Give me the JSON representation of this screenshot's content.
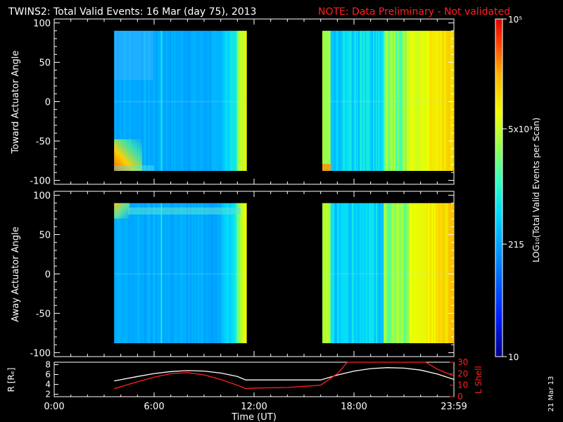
{
  "header": {
    "title": "TWINS2: Total Valid Events: 16 Mar (day  75), 2013",
    "note": "NOTE: Data Preliminary - Not validated"
  },
  "footer": {
    "date_stamp": "21 Mar 13"
  },
  "colors": {
    "axis": "#ffffff",
    "note": "#ff2020",
    "background": "#000000"
  },
  "chart_data": [
    {
      "type": "heatmap",
      "ylabel": "Toward Actuator Angle",
      "ylim": [
        -105,
        105
      ],
      "yticks": [
        "100",
        "50",
        "0",
        "-50",
        "-100"
      ],
      "xlim": [
        0,
        24
      ],
      "data_intervals_ut": [
        [
          3.6,
          11.55
        ],
        [
          16.1,
          24.0
        ]
      ],
      "data_angle_range": [
        -88,
        90
      ],
      "dominant_level": "~215-500 events per scan (blue), rising to ~5e3-1e5 (yellow/orange) near 11:00 and after 21:00"
    },
    {
      "type": "heatmap",
      "ylabel": "Away Actuator Angle",
      "ylim": [
        -105,
        105
      ],
      "yticks": [
        "100",
        "50",
        "0",
        "-50",
        "-100"
      ],
      "xlim": [
        0,
        24
      ],
      "data_intervals_ut": [
        [
          3.6,
          11.55
        ],
        [
          16.1,
          24.0
        ]
      ],
      "data_angle_range": [
        -88,
        90
      ]
    },
    {
      "type": "line",
      "xlabel": "Time (UT)",
      "xticks": [
        "0:00",
        "6:00",
        "12:00",
        "18:00",
        "23:59"
      ],
      "xlim": [
        0,
        24
      ],
      "left_axis": {
        "label": "R [Rₑ]",
        "ticks": [
          "8",
          "6",
          "4",
          "2"
        ],
        "ylim": [
          1.5,
          8.5
        ]
      },
      "right_axis": {
        "label": "L Shell",
        "ticks": [
          "30",
          "20",
          "10",
          "0"
        ],
        "ylim": [
          0,
          30
        ],
        "color": "#ff2020"
      },
      "series": [
        {
          "color": "#ffffff",
          "x": [
            3.6,
            5,
            6,
            7,
            8,
            9,
            10,
            11,
            11.5,
            12,
            14,
            16,
            17,
            18,
            19,
            20,
            21,
            22,
            23,
            24
          ],
          "y": [
            4.7,
            5.6,
            6.2,
            6.6,
            6.8,
            6.7,
            6.3,
            5.6,
            4.9,
            4.9,
            4.9,
            4.9,
            5.9,
            6.7,
            7.2,
            7.4,
            7.3,
            6.9,
            6.1,
            5.0
          ]
        },
        {
          "color": "#ff2020",
          "x": [
            3.6,
            5,
            6,
            7,
            8,
            9,
            10,
            11,
            11.5,
            12,
            14,
            16,
            17,
            17.6,
            22.3,
            23,
            24
          ],
          "y": [
            7,
            13,
            17,
            20,
            21,
            19,
            15,
            10,
            7,
            7.5,
            8,
            10,
            20,
            30,
            30,
            24,
            18
          ]
        }
      ]
    }
  ],
  "colorbar": {
    "label": "LOG₁₀(Total Valid Events per Scan)",
    "ticks": [
      {
        "value": 10,
        "label": "10"
      },
      {
        "value": 215,
        "label": "215"
      },
      {
        "value": 5000,
        "label": "5x10³"
      },
      {
        "value": 100000,
        "label": "10⁵"
      }
    ],
    "range": [
      10,
      100000
    ],
    "scale": "log"
  }
}
